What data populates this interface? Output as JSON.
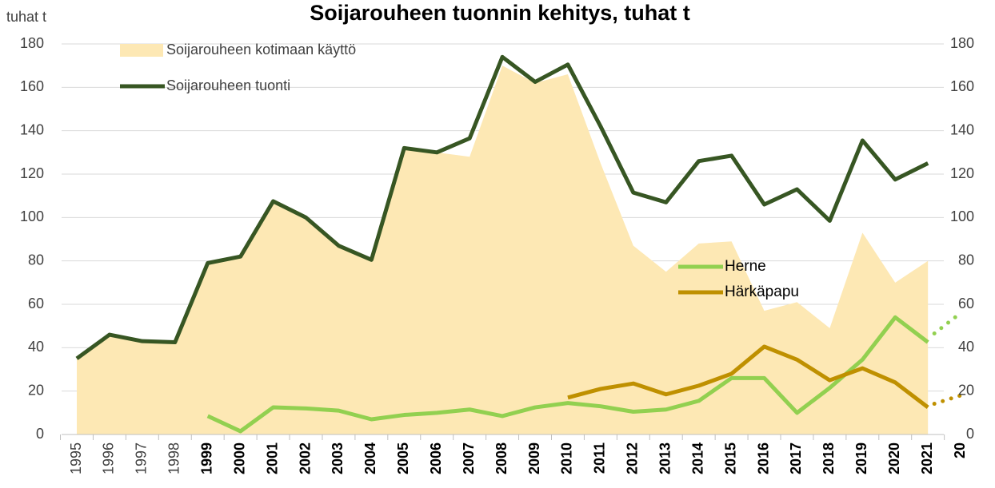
{
  "chart_data": {
    "type": "line",
    "title": "Soijarouheen tuonnin kehitys, tuhat t",
    "y_label": "tuhat t",
    "categories": [
      "1995",
      "1996",
      "1997",
      "1998",
      "1999",
      "2000",
      "2001",
      "2002",
      "2003",
      "2004",
      "2005",
      "2006",
      "2007",
      "2008",
      "2009",
      "2010",
      "2011",
      "2012",
      "2013",
      "2014",
      "2015",
      "2016",
      "2017",
      "2018",
      "2019",
      "2020",
      "2021",
      "20"
    ],
    "series": [
      {
        "name": "Soijarouheen kotimaan käyttö",
        "kind": "area",
        "color": "#fde8b4",
        "values": [
          35,
          46,
          43,
          42,
          79,
          82,
          107,
          100,
          87,
          80,
          132,
          130,
          128,
          170,
          162,
          166,
          125,
          87,
          75,
          88,
          89,
          57,
          61,
          49,
          93,
          70,
          80,
          null
        ]
      },
      {
        "name": "Soijarouheen tuonti",
        "kind": "line",
        "color": "#375623",
        "values": [
          35,
          46,
          43,
          42.5,
          79,
          82,
          107.5,
          100,
          87,
          80.5,
          132,
          130,
          136.5,
          174,
          162.5,
          170.5,
          142,
          111.5,
          107,
          126,
          128.5,
          106,
          113,
          98.5,
          135.5,
          117.5,
          125,
          null
        ]
      },
      {
        "name": "Herne",
        "kind": "line",
        "color": "#92d050",
        "dotted_last": true,
        "values": [
          null,
          null,
          null,
          null,
          8.5,
          1.5,
          12.5,
          12,
          11,
          7,
          9,
          10,
          11.5,
          8.5,
          12.5,
          14.5,
          13,
          10.5,
          11.5,
          15.5,
          26,
          26,
          10,
          21.5,
          34.5,
          54,
          42.5,
          56
        ]
      },
      {
        "name": "Härkäpapu",
        "kind": "line",
        "color": "#bf9000",
        "dotted_last": true,
        "values": [
          null,
          null,
          null,
          null,
          null,
          null,
          null,
          null,
          null,
          null,
          null,
          null,
          null,
          null,
          null,
          17,
          21,
          23.5,
          18.5,
          22.5,
          28,
          40.5,
          34.5,
          25,
          30.5,
          24,
          12.5,
          18
        ]
      }
    ],
    "ylim": [
      0,
      180
    ],
    "yticks": [
      0,
      20,
      40,
      60,
      80,
      100,
      120,
      140,
      160,
      180
    ],
    "y2lim": [
      0,
      180
    ],
    "y2ticks": [
      0,
      20,
      40,
      60,
      80,
      100,
      120,
      140,
      160,
      180
    ],
    "grid": true
  }
}
